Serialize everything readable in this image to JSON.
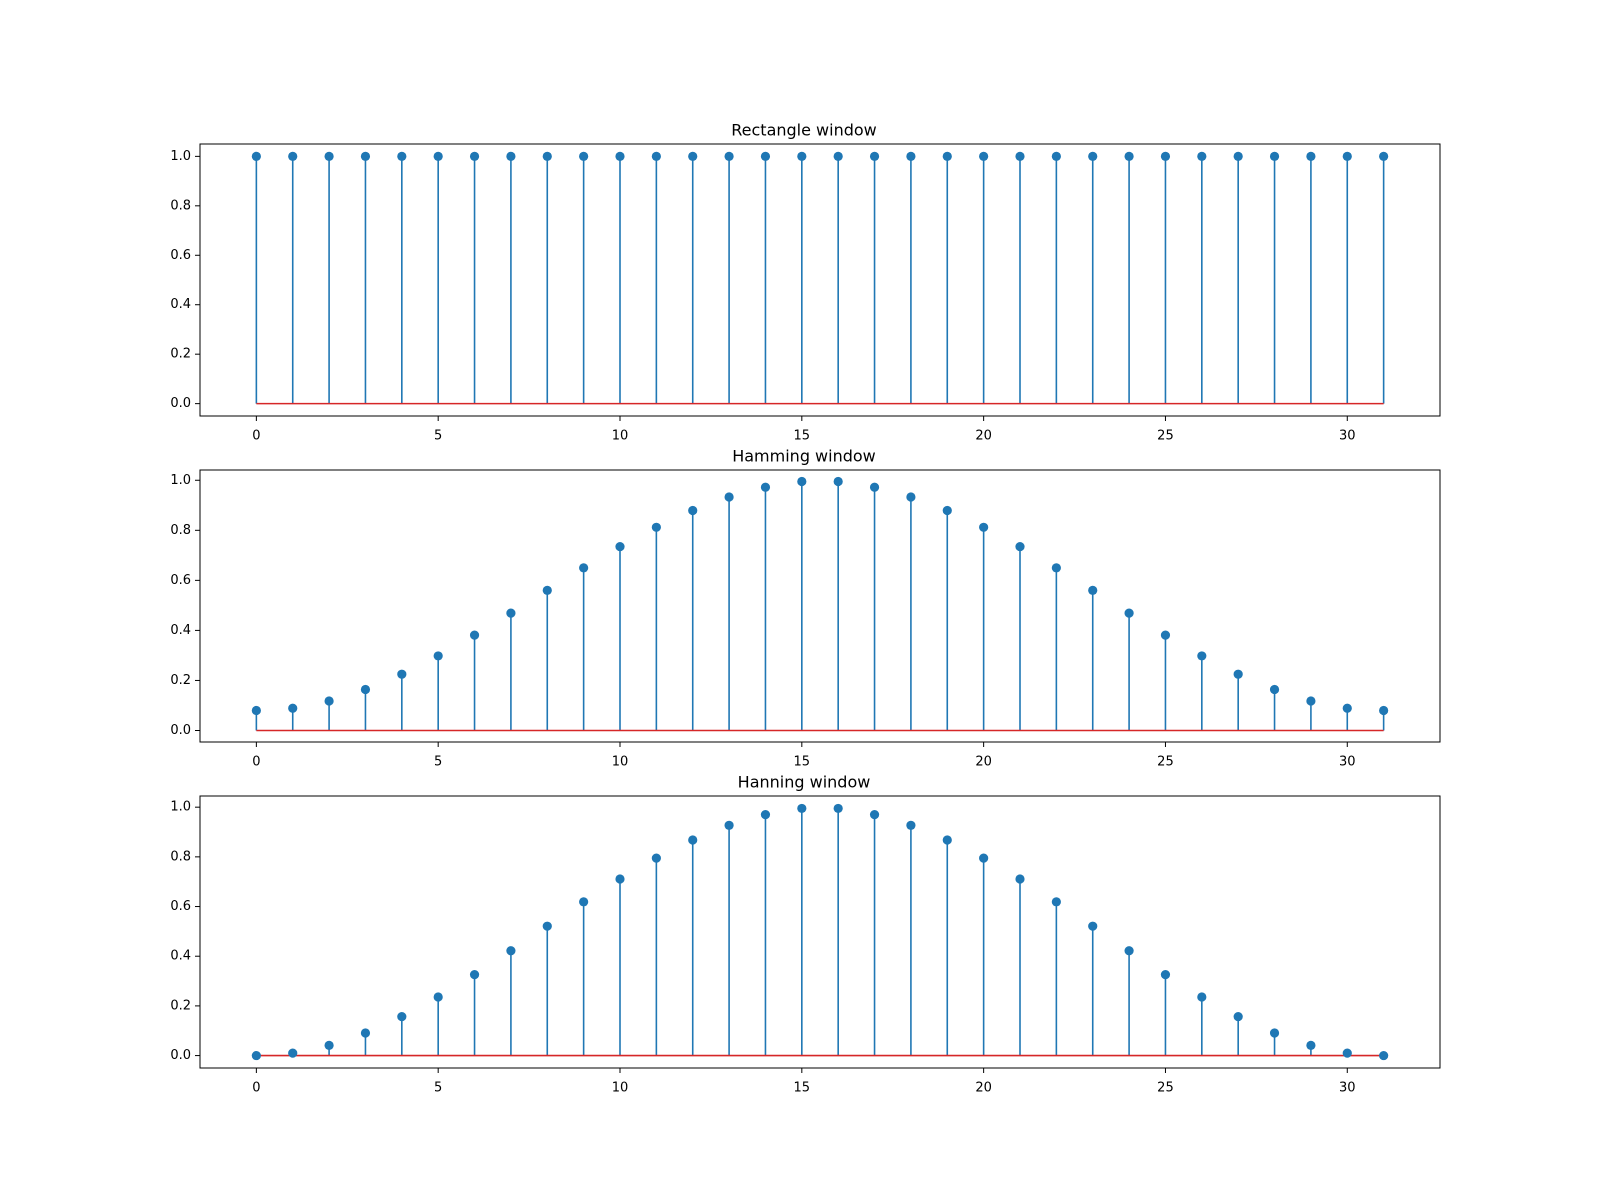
{
  "chart_data": [
    {
      "type": "stem",
      "title": "Rectangle window",
      "xlabel": "",
      "ylabel": "",
      "x": [
        0,
        1,
        2,
        3,
        4,
        5,
        6,
        7,
        8,
        9,
        10,
        11,
        12,
        13,
        14,
        15,
        16,
        17,
        18,
        19,
        20,
        21,
        22,
        23,
        24,
        25,
        26,
        27,
        28,
        29,
        30,
        31
      ],
      "values": [
        1.0,
        1.0,
        1.0,
        1.0,
        1.0,
        1.0,
        1.0,
        1.0,
        1.0,
        1.0,
        1.0,
        1.0,
        1.0,
        1.0,
        1.0,
        1.0,
        1.0,
        1.0,
        1.0,
        1.0,
        1.0,
        1.0,
        1.0,
        1.0,
        1.0,
        1.0,
        1.0,
        1.0,
        1.0,
        1.0,
        1.0,
        1.0
      ],
      "xlim": [
        -1.55,
        32.55
      ],
      "ylim": [
        -0.05,
        1.05
      ],
      "xticks": [
        0,
        5,
        10,
        15,
        20,
        25,
        30
      ],
      "yticks": [
        0.0,
        0.2,
        0.4,
        0.6,
        0.8,
        1.0
      ],
      "xtick_labels": [
        "0",
        "5",
        "10",
        "15",
        "20",
        "25",
        "30"
      ],
      "ytick_labels": [
        "0.0",
        "0.2",
        "0.4",
        "0.6",
        "0.8",
        "1.0"
      ],
      "stem_color": "#1f77b4",
      "baseline_color": "#d62728",
      "grid": false
    },
    {
      "type": "stem",
      "title": "Hamming window",
      "xlabel": "",
      "ylabel": "",
      "x": [
        0,
        1,
        2,
        3,
        4,
        5,
        6,
        7,
        8,
        9,
        10,
        11,
        12,
        13,
        14,
        15,
        16,
        17,
        18,
        19,
        20,
        21,
        22,
        23,
        24,
        25,
        26,
        27,
        28,
        29,
        30,
        31
      ],
      "values": [
        0.08,
        0.089,
        0.118,
        0.164,
        0.225,
        0.298,
        0.381,
        0.469,
        0.56,
        0.65,
        0.735,
        0.812,
        0.879,
        0.933,
        0.972,
        0.995,
        0.995,
        0.972,
        0.933,
        0.879,
        0.812,
        0.735,
        0.65,
        0.56,
        0.469,
        0.381,
        0.298,
        0.225,
        0.164,
        0.118,
        0.089,
        0.08
      ],
      "xlim": [
        -1.55,
        32.55
      ],
      "ylim": [
        -0.046,
        1.041
      ],
      "xticks": [
        0,
        5,
        10,
        15,
        20,
        25,
        30
      ],
      "yticks": [
        0.0,
        0.2,
        0.4,
        0.6,
        0.8,
        1.0
      ],
      "xtick_labels": [
        "0",
        "5",
        "10",
        "15",
        "20",
        "25",
        "30"
      ],
      "ytick_labels": [
        "0.0",
        "0.2",
        "0.4",
        "0.6",
        "0.8",
        "1.0"
      ],
      "stem_color": "#1f77b4",
      "baseline_color": "#d62728",
      "grid": false
    },
    {
      "type": "stem",
      "title": "Hanning window",
      "xlabel": "",
      "ylabel": "",
      "x": [
        0,
        1,
        2,
        3,
        4,
        5,
        6,
        7,
        8,
        9,
        10,
        11,
        12,
        13,
        14,
        15,
        16,
        17,
        18,
        19,
        20,
        21,
        22,
        23,
        24,
        25,
        26,
        27,
        28,
        29,
        30,
        31
      ],
      "values": [
        0.0,
        0.01,
        0.041,
        0.091,
        0.157,
        0.236,
        0.326,
        0.422,
        0.521,
        0.619,
        0.711,
        0.795,
        0.868,
        0.927,
        0.97,
        0.995,
        0.995,
        0.97,
        0.927,
        0.868,
        0.795,
        0.711,
        0.619,
        0.521,
        0.422,
        0.326,
        0.236,
        0.157,
        0.091,
        0.041,
        0.01,
        0.0
      ],
      "xlim": [
        -1.55,
        32.55
      ],
      "ylim": [
        -0.05,
        1.045
      ],
      "xticks": [
        0,
        5,
        10,
        15,
        20,
        25,
        30
      ],
      "yticks": [
        0.0,
        0.2,
        0.4,
        0.6,
        0.8,
        1.0
      ],
      "xtick_labels": [
        "0",
        "5",
        "10",
        "15",
        "20",
        "25",
        "30"
      ],
      "ytick_labels": [
        "0.0",
        "0.2",
        "0.4",
        "0.6",
        "0.8",
        "1.0"
      ],
      "stem_color": "#1f77b4",
      "baseline_color": "#d62728",
      "grid": false
    }
  ]
}
